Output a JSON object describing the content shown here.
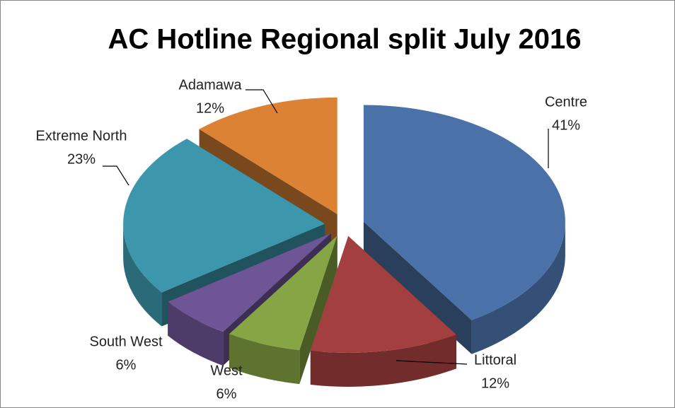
{
  "chart_data": {
    "type": "pie",
    "title": "AC Hotline Regional split July 2016",
    "categories": [
      "Centre",
      "Littoral",
      "West",
      "South West",
      "Extreme North",
      "Adamawa"
    ],
    "values": [
      41,
      12,
      6,
      6,
      23,
      12
    ],
    "value_labels": [
      "41%",
      "12%",
      "6%",
      "6%",
      "23%",
      "12%"
    ],
    "colors": [
      "#4a72a8",
      "#a43f3f",
      "#86a545",
      "#6e5596",
      "#3c97ad",
      "#dc8234"
    ]
  }
}
